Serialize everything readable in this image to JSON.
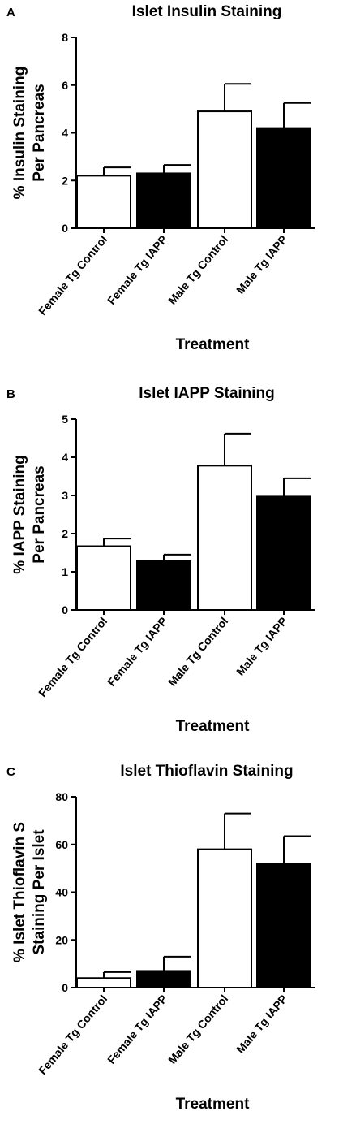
{
  "chart_data": [
    {
      "panel": "A",
      "type": "bar",
      "title": "Islet Insulin Staining",
      "xlabel": "Treatment",
      "ylabel": "% Insulin Staining Per Pancreas",
      "ylabel_lines": [
        "% Insulin Staining",
        "Per Pancreas"
      ],
      "ylim": [
        0,
        8
      ],
      "yticks": [
        0,
        2,
        4,
        6,
        8
      ],
      "categories": [
        "Female Tg Control",
        "Female Tg IAPP",
        "Male Tg Control",
        "Male Tg IAPP"
      ],
      "values": [
        2.2,
        2.3,
        4.9,
        4.2
      ],
      "errors": [
        0.35,
        0.35,
        1.15,
        1.05
      ],
      "fills": [
        "#ffffff",
        "#000000",
        "#ffffff",
        "#000000"
      ]
    },
    {
      "panel": "B",
      "type": "bar",
      "title": "Islet IAPP Staining",
      "xlabel": "Treatment",
      "ylabel": "% IAPP Staining Per Pancreas",
      "ylabel_lines": [
        "% IAPP Staining",
        "Per Pancreas"
      ],
      "ylim": [
        0,
        5
      ],
      "yticks": [
        0,
        1,
        2,
        3,
        4,
        5
      ],
      "categories": [
        "Female Tg Control",
        "Female Tg IAPP",
        "Male Tg Control",
        "Male Tg IAPP"
      ],
      "values": [
        1.67,
        1.28,
        3.78,
        2.97
      ],
      "errors": [
        0.2,
        0.17,
        0.84,
        0.48
      ],
      "fills": [
        "#ffffff",
        "#000000",
        "#ffffff",
        "#000000"
      ]
    },
    {
      "panel": "C",
      "type": "bar",
      "title": "Islet Thioflavin Staining",
      "xlabel": "Treatment",
      "ylabel": "% Islet Thioflavin S Staining Per Islet",
      "ylabel_lines": [
        "% Islet Thioflavin S",
        "Staining Per Islet"
      ],
      "ylim": [
        0,
        80
      ],
      "yticks": [
        0,
        20,
        40,
        60,
        80
      ],
      "categories": [
        "Female Tg Control",
        "Female Tg IAPP",
        "Male Tg Control",
        "Male Tg IAPP"
      ],
      "values": [
        4,
        7,
        58,
        52
      ],
      "errors": [
        2.5,
        6,
        15,
        11.5
      ],
      "fills": [
        "#ffffff",
        "#000000",
        "#ffffff",
        "#000000"
      ]
    }
  ]
}
